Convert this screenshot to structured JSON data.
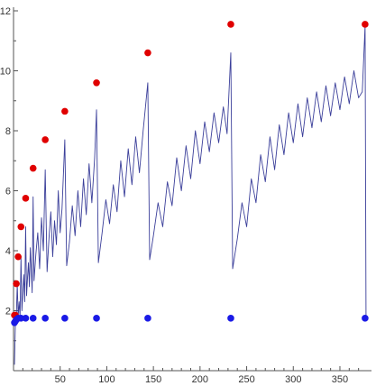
{
  "chart_data": {
    "type": "line",
    "title": "",
    "xlabel": "",
    "ylabel": "",
    "xlim": [
      0,
      380
    ],
    "ylim": [
      0,
      12
    ],
    "x_ticks": [
      50,
      100,
      150,
      200,
      250,
      300,
      350
    ],
    "y_ticks": [
      2,
      4,
      6,
      8,
      10,
      12
    ],
    "line_color": "#3b3f9a",
    "series": [
      {
        "values": [
          [
            1,
            0.2
          ],
          [
            2,
            1.6
          ],
          [
            3,
            1.8
          ],
          [
            4,
            2.9
          ],
          [
            5,
            1.8
          ],
          [
            6,
            2.3
          ],
          [
            7,
            1.8
          ],
          [
            8,
            3.8
          ],
          [
            9,
            2.0
          ],
          [
            10,
            2.6
          ],
          [
            11,
            3.2
          ],
          [
            12,
            2.3
          ],
          [
            13,
            4.8
          ],
          [
            14,
            2.5
          ],
          [
            15,
            3.1
          ],
          [
            16,
            3.6
          ],
          [
            17,
            2.8
          ],
          [
            18,
            4.1
          ],
          [
            19,
            3.4
          ],
          [
            20,
            2.6
          ],
          [
            21,
            5.8
          ],
          [
            22,
            3.0
          ],
          [
            24,
            3.9
          ],
          [
            26,
            4.6
          ],
          [
            28,
            3.4
          ],
          [
            30,
            5.1
          ],
          [
            32,
            4.0
          ],
          [
            34,
            6.7
          ],
          [
            36,
            3.3
          ],
          [
            38,
            4.4
          ],
          [
            40,
            5.3
          ],
          [
            42,
            3.8
          ],
          [
            44,
            5.0
          ],
          [
            46,
            4.2
          ],
          [
            48,
            6.0
          ],
          [
            50,
            4.6
          ],
          [
            52,
            5.4
          ],
          [
            55,
            7.7
          ],
          [
            57,
            3.5
          ],
          [
            60,
            4.3
          ],
          [
            63,
            5.5
          ],
          [
            66,
            4.5
          ],
          [
            69,
            6.0
          ],
          [
            72,
            4.8
          ],
          [
            75,
            6.4
          ],
          [
            78,
            5.2
          ],
          [
            81,
            6.9
          ],
          [
            84,
            5.6
          ],
          [
            87,
            7.1
          ],
          [
            89,
            8.7
          ],
          [
            91,
            3.6
          ],
          [
            95,
            4.6
          ],
          [
            99,
            5.7
          ],
          [
            103,
            4.9
          ],
          [
            107,
            6.2
          ],
          [
            111,
            5.3
          ],
          [
            115,
            7.0
          ],
          [
            119,
            5.8
          ],
          [
            123,
            7.4
          ],
          [
            127,
            6.2
          ],
          [
            131,
            7.8
          ],
          [
            135,
            6.6
          ],
          [
            139,
            8.0
          ],
          [
            144,
            9.6
          ],
          [
            146,
            3.7
          ],
          [
            150,
            4.5
          ],
          [
            155,
            5.6
          ],
          [
            160,
            4.8
          ],
          [
            165,
            6.3
          ],
          [
            170,
            5.5
          ],
          [
            175,
            7.1
          ],
          [
            180,
            6.0
          ],
          [
            185,
            7.5
          ],
          [
            190,
            6.4
          ],
          [
            195,
            8.0
          ],
          [
            200,
            6.9
          ],
          [
            205,
            8.3
          ],
          [
            210,
            7.3
          ],
          [
            215,
            8.6
          ],
          [
            220,
            7.6
          ],
          [
            225,
            8.8
          ],
          [
            229,
            7.9
          ],
          [
            233,
            10.6
          ],
          [
            235,
            3.4
          ],
          [
            240,
            4.4
          ],
          [
            245,
            5.6
          ],
          [
            250,
            4.8
          ],
          [
            255,
            6.4
          ],
          [
            260,
            5.6
          ],
          [
            265,
            7.2
          ],
          [
            270,
            6.3
          ],
          [
            275,
            7.8
          ],
          [
            280,
            6.7
          ],
          [
            285,
            8.2
          ],
          [
            290,
            7.2
          ],
          [
            295,
            8.6
          ],
          [
            300,
            7.6
          ],
          [
            305,
            8.9
          ],
          [
            310,
            7.8
          ],
          [
            315,
            9.1
          ],
          [
            320,
            8.1
          ],
          [
            325,
            9.3
          ],
          [
            330,
            8.3
          ],
          [
            335,
            9.5
          ],
          [
            340,
            8.5
          ],
          [
            345,
            9.6
          ],
          [
            350,
            8.7
          ],
          [
            355,
            9.8
          ],
          [
            360,
            8.9
          ],
          [
            365,
            10.0
          ],
          [
            370,
            9.1
          ],
          [
            374,
            9.3
          ],
          [
            377,
            11.5
          ],
          [
            378,
            1.8
          ]
        ]
      },
      {
        "marker": "dot",
        "color": "#e00000",
        "values": [
          [
            1,
            1.85
          ],
          [
            2,
            1.85
          ],
          [
            3,
            2.9
          ],
          [
            5,
            3.8
          ],
          [
            8,
            4.8
          ],
          [
            13,
            5.75
          ],
          [
            21,
            6.75
          ],
          [
            34,
            7.7
          ],
          [
            55,
            8.65
          ],
          [
            89,
            9.6
          ],
          [
            144,
            10.6
          ],
          [
            233,
            11.55
          ],
          [
            377,
            11.55
          ]
        ]
      },
      {
        "marker": "dot",
        "color": "#1a1ae6",
        "values": [
          [
            1,
            1.6
          ],
          [
            2,
            1.65
          ],
          [
            3,
            1.7
          ],
          [
            5,
            1.75
          ],
          [
            8,
            1.75
          ],
          [
            13,
            1.75
          ],
          [
            21,
            1.75
          ],
          [
            34,
            1.75
          ],
          [
            55,
            1.75
          ],
          [
            89,
            1.75
          ],
          [
            144,
            1.75
          ],
          [
            233,
            1.75
          ],
          [
            377,
            1.75
          ]
        ]
      }
    ]
  }
}
